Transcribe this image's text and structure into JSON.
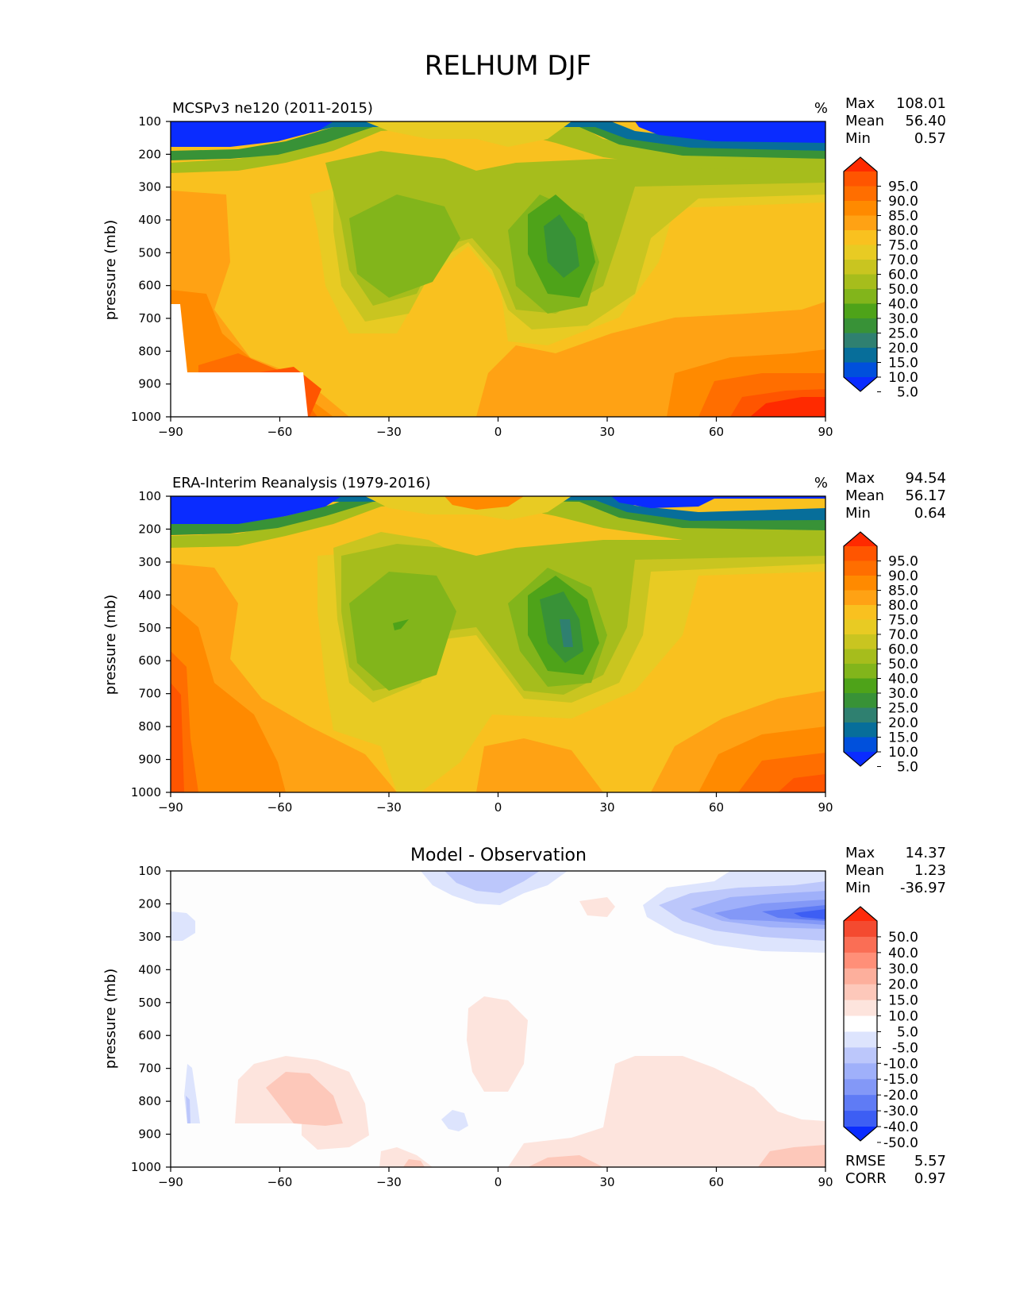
{
  "figure": {
    "title": "RELHUM DJF"
  },
  "chart_data": [
    {
      "type": "heatmap",
      "title": "MCSPv3 ne120 (2011-2015)",
      "units": "%",
      "xlabel": "",
      "ylabel": "pressure (mb)",
      "xlim": [
        -90,
        90
      ],
      "ylim": [
        1000,
        100
      ],
      "xticks": [
        "−90",
        "−60",
        "−30",
        "0",
        "30",
        "60",
        "90"
      ],
      "yticks": [
        "100",
        "200",
        "300",
        "400",
        "500",
        "600",
        "700",
        "800",
        "900",
        "1000"
      ],
      "stats": [
        {
          "label": "Max",
          "value": "108.01"
        },
        {
          "label": "Mean",
          "value": "56.40"
        },
        {
          "label": "Min",
          "value": "0.57"
        }
      ],
      "colorbar": {
        "labels": [
          "95.0",
          "90.0",
          "85.0",
          "80.0",
          "75.0",
          "70.0",
          "60.0",
          "50.0",
          "40.0",
          "30.0",
          "25.0",
          "20.0",
          "15.0",
          "10.0",
          "5.0"
        ],
        "colors": [
          "#ff2a00",
          "#ff5500",
          "#ff6e00",
          "#ff8a00",
          "#ffa214",
          "#f9c11f",
          "#e8cb23",
          "#c9c520",
          "#a6bd1c",
          "#82b51b",
          "#4ea319",
          "#389237",
          "#2f8070",
          "#076e9a",
          "#0050dc",
          "#0a2cff"
        ]
      }
    },
    {
      "type": "heatmap",
      "title": "ERA-Interim Reanalysis (1979-2016)",
      "units": "%",
      "xlabel": "",
      "ylabel": "pressure (mb)",
      "xlim": [
        -90,
        90
      ],
      "ylim": [
        1000,
        100
      ],
      "xticks": [
        "−90",
        "−60",
        "−30",
        "0",
        "30",
        "60",
        "90"
      ],
      "yticks": [
        "100",
        "200",
        "300",
        "400",
        "500",
        "600",
        "700",
        "800",
        "900",
        "1000"
      ],
      "stats": [
        {
          "label": "Max",
          "value": "94.54"
        },
        {
          "label": "Mean",
          "value": "56.17"
        },
        {
          "label": "Min",
          "value": "0.64"
        }
      ],
      "colorbar": {
        "labels": [
          "95.0",
          "90.0",
          "85.0",
          "80.0",
          "75.0",
          "70.0",
          "60.0",
          "50.0",
          "40.0",
          "30.0",
          "25.0",
          "20.0",
          "15.0",
          "10.0",
          "5.0"
        ],
        "colors": [
          "#ff2a00",
          "#ff5500",
          "#ff6e00",
          "#ff8a00",
          "#ffa214",
          "#f9c11f",
          "#e8cb23",
          "#c9c520",
          "#a6bd1c",
          "#82b51b",
          "#4ea319",
          "#389237",
          "#2f8070",
          "#076e9a",
          "#0050dc",
          "#0a2cff"
        ]
      }
    },
    {
      "type": "heatmap",
      "title": "Model - Observation",
      "units": "",
      "xlabel": "",
      "ylabel": "pressure (mb)",
      "xlim": [
        -90,
        90
      ],
      "ylim": [
        1000,
        100
      ],
      "xticks": [
        "−90",
        "−60",
        "−30",
        "0",
        "30",
        "60",
        "90"
      ],
      "yticks": [
        "100",
        "200",
        "300",
        "400",
        "500",
        "600",
        "700",
        "800",
        "900",
        "1000"
      ],
      "stats": [
        {
          "label": "Max",
          "value": "14.37"
        },
        {
          "label": "Mean",
          "value": "1.23"
        },
        {
          "label": "Min",
          "value": "-36.97"
        }
      ],
      "extra_stats": [
        {
          "label": "RMSE",
          "value": "5.57"
        },
        {
          "label": "CORR",
          "value": "0.97"
        }
      ],
      "colorbar": {
        "labels": [
          "50.0",
          "40.0",
          "30.0",
          "20.0",
          "15.0",
          "10.0",
          "5.0",
          "-5.0",
          "-10.0",
          "-15.0",
          "-20.0",
          "-30.0",
          "-40.0",
          "-50.0"
        ],
        "colors": [
          "#ff2a0a",
          "#f44a30",
          "#fa6e55",
          "#ff8f78",
          "#fdaf9c",
          "#fdc8ba",
          "#fde4dd",
          "#ffffff",
          "#dde4fd",
          "#bcc7fb",
          "#9fb0fa",
          "#8398f7",
          "#5f7bf5",
          "#3d5ef4",
          "#0a2cff"
        ]
      }
    }
  ]
}
